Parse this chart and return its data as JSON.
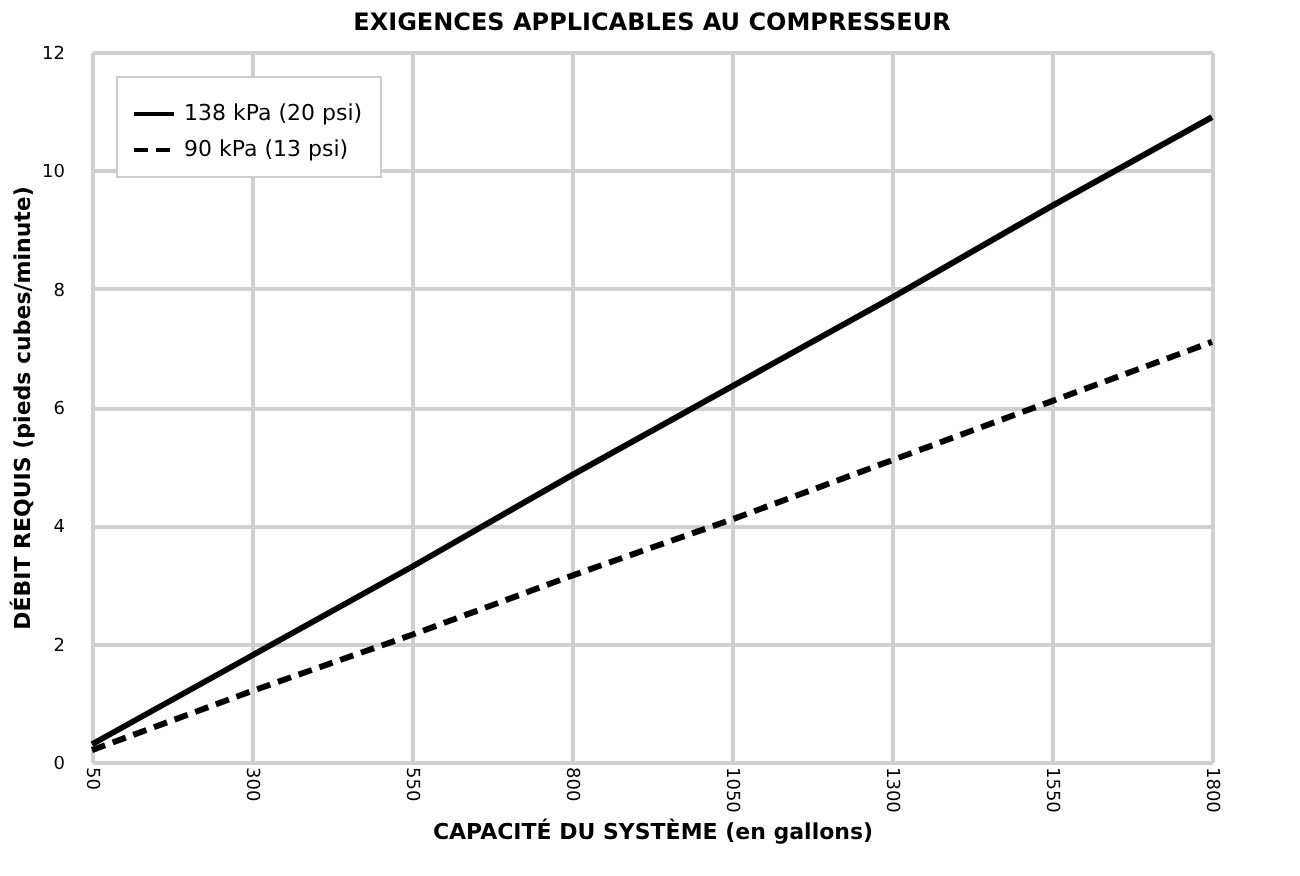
{
  "chart_data": {
    "type": "line",
    "title": "EXIGENCES APPLICABLES AU COMPRESSEUR",
    "xlabel": "CAPACITÉ DU SYSTÈME (en gallons)",
    "ylabel": "DÉBIT REQUIS (pieds cubes/minute)",
    "x": [
      50,
      300,
      550,
      800,
      1050,
      1300,
      1550,
      1800
    ],
    "series": [
      {
        "name": "138 kPa (20 psi)",
        "color": "#000000",
        "line_style": "solid",
        "values": [
          0.3,
          1.8,
          3.3,
          4.85,
          6.35,
          7.85,
          9.4,
          10.9
        ]
      },
      {
        "name": "90 kPa (13 psi)",
        "color": "#000000",
        "line_style": "dashed",
        "values": [
          0.2,
          1.2,
          2.15,
          3.15,
          4.1,
          5.1,
          6.1,
          7.1
        ]
      }
    ],
    "xlim": [
      50,
      1800
    ],
    "xticks": [
      50,
      300,
      550,
      800,
      1050,
      1300,
      1550,
      1800
    ],
    "ylim": [
      0,
      12
    ],
    "yticks": [
      0,
      2,
      4,
      6,
      8,
      10,
      12
    ],
    "grid": true,
    "legend": "top left",
    "marker": "none"
  }
}
